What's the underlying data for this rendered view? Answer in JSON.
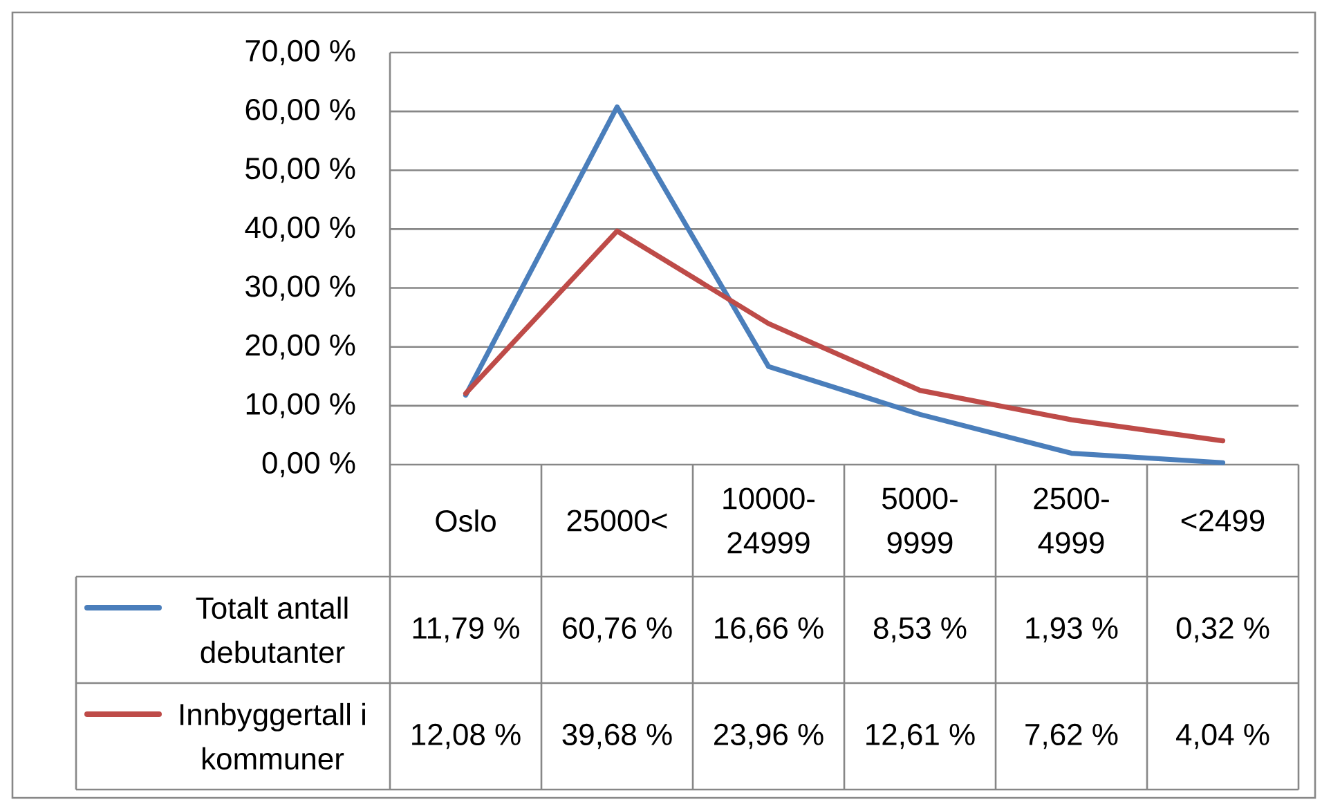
{
  "chart_data": {
    "type": "line",
    "categories": [
      "Oslo",
      "25000<",
      "10000-24999",
      "5000-9999",
      "2500-4999",
      "<2499"
    ],
    "series": [
      {
        "name": "Totalt antall debutanter",
        "color": "#4a7ebb",
        "values": [
          11.79,
          60.76,
          16.66,
          8.53,
          1.93,
          0.32
        ],
        "value_labels": [
          "11,79 %",
          "60,76 %",
          "16,66 %",
          "8,53 %",
          "1,93 %",
          "0,32 %"
        ]
      },
      {
        "name": "Innbyggertall i kommuner",
        "color": "#be4b48",
        "values": [
          12.08,
          39.68,
          23.96,
          12.61,
          7.62,
          4.04
        ],
        "value_labels": [
          "12,08 %",
          "39,68 %",
          "23,96 %",
          "12,61 %",
          "7,62 %",
          "4,04 %"
        ]
      }
    ],
    "ylim": [
      0,
      70
    ],
    "yticks": [
      {
        "value": 0,
        "label": "0,00 %"
      },
      {
        "value": 10,
        "label": "10,00 %"
      },
      {
        "value": 20,
        "label": "20,00 %"
      },
      {
        "value": 30,
        "label": "30,00 %"
      },
      {
        "value": 40,
        "label": "40,00 %"
      },
      {
        "value": 50,
        "label": "50,00 %"
      },
      {
        "value": 60,
        "label": "60,00 %"
      },
      {
        "value": 70,
        "label": "70,00 %"
      }
    ],
    "grid": "y",
    "legend": "bottom left"
  }
}
